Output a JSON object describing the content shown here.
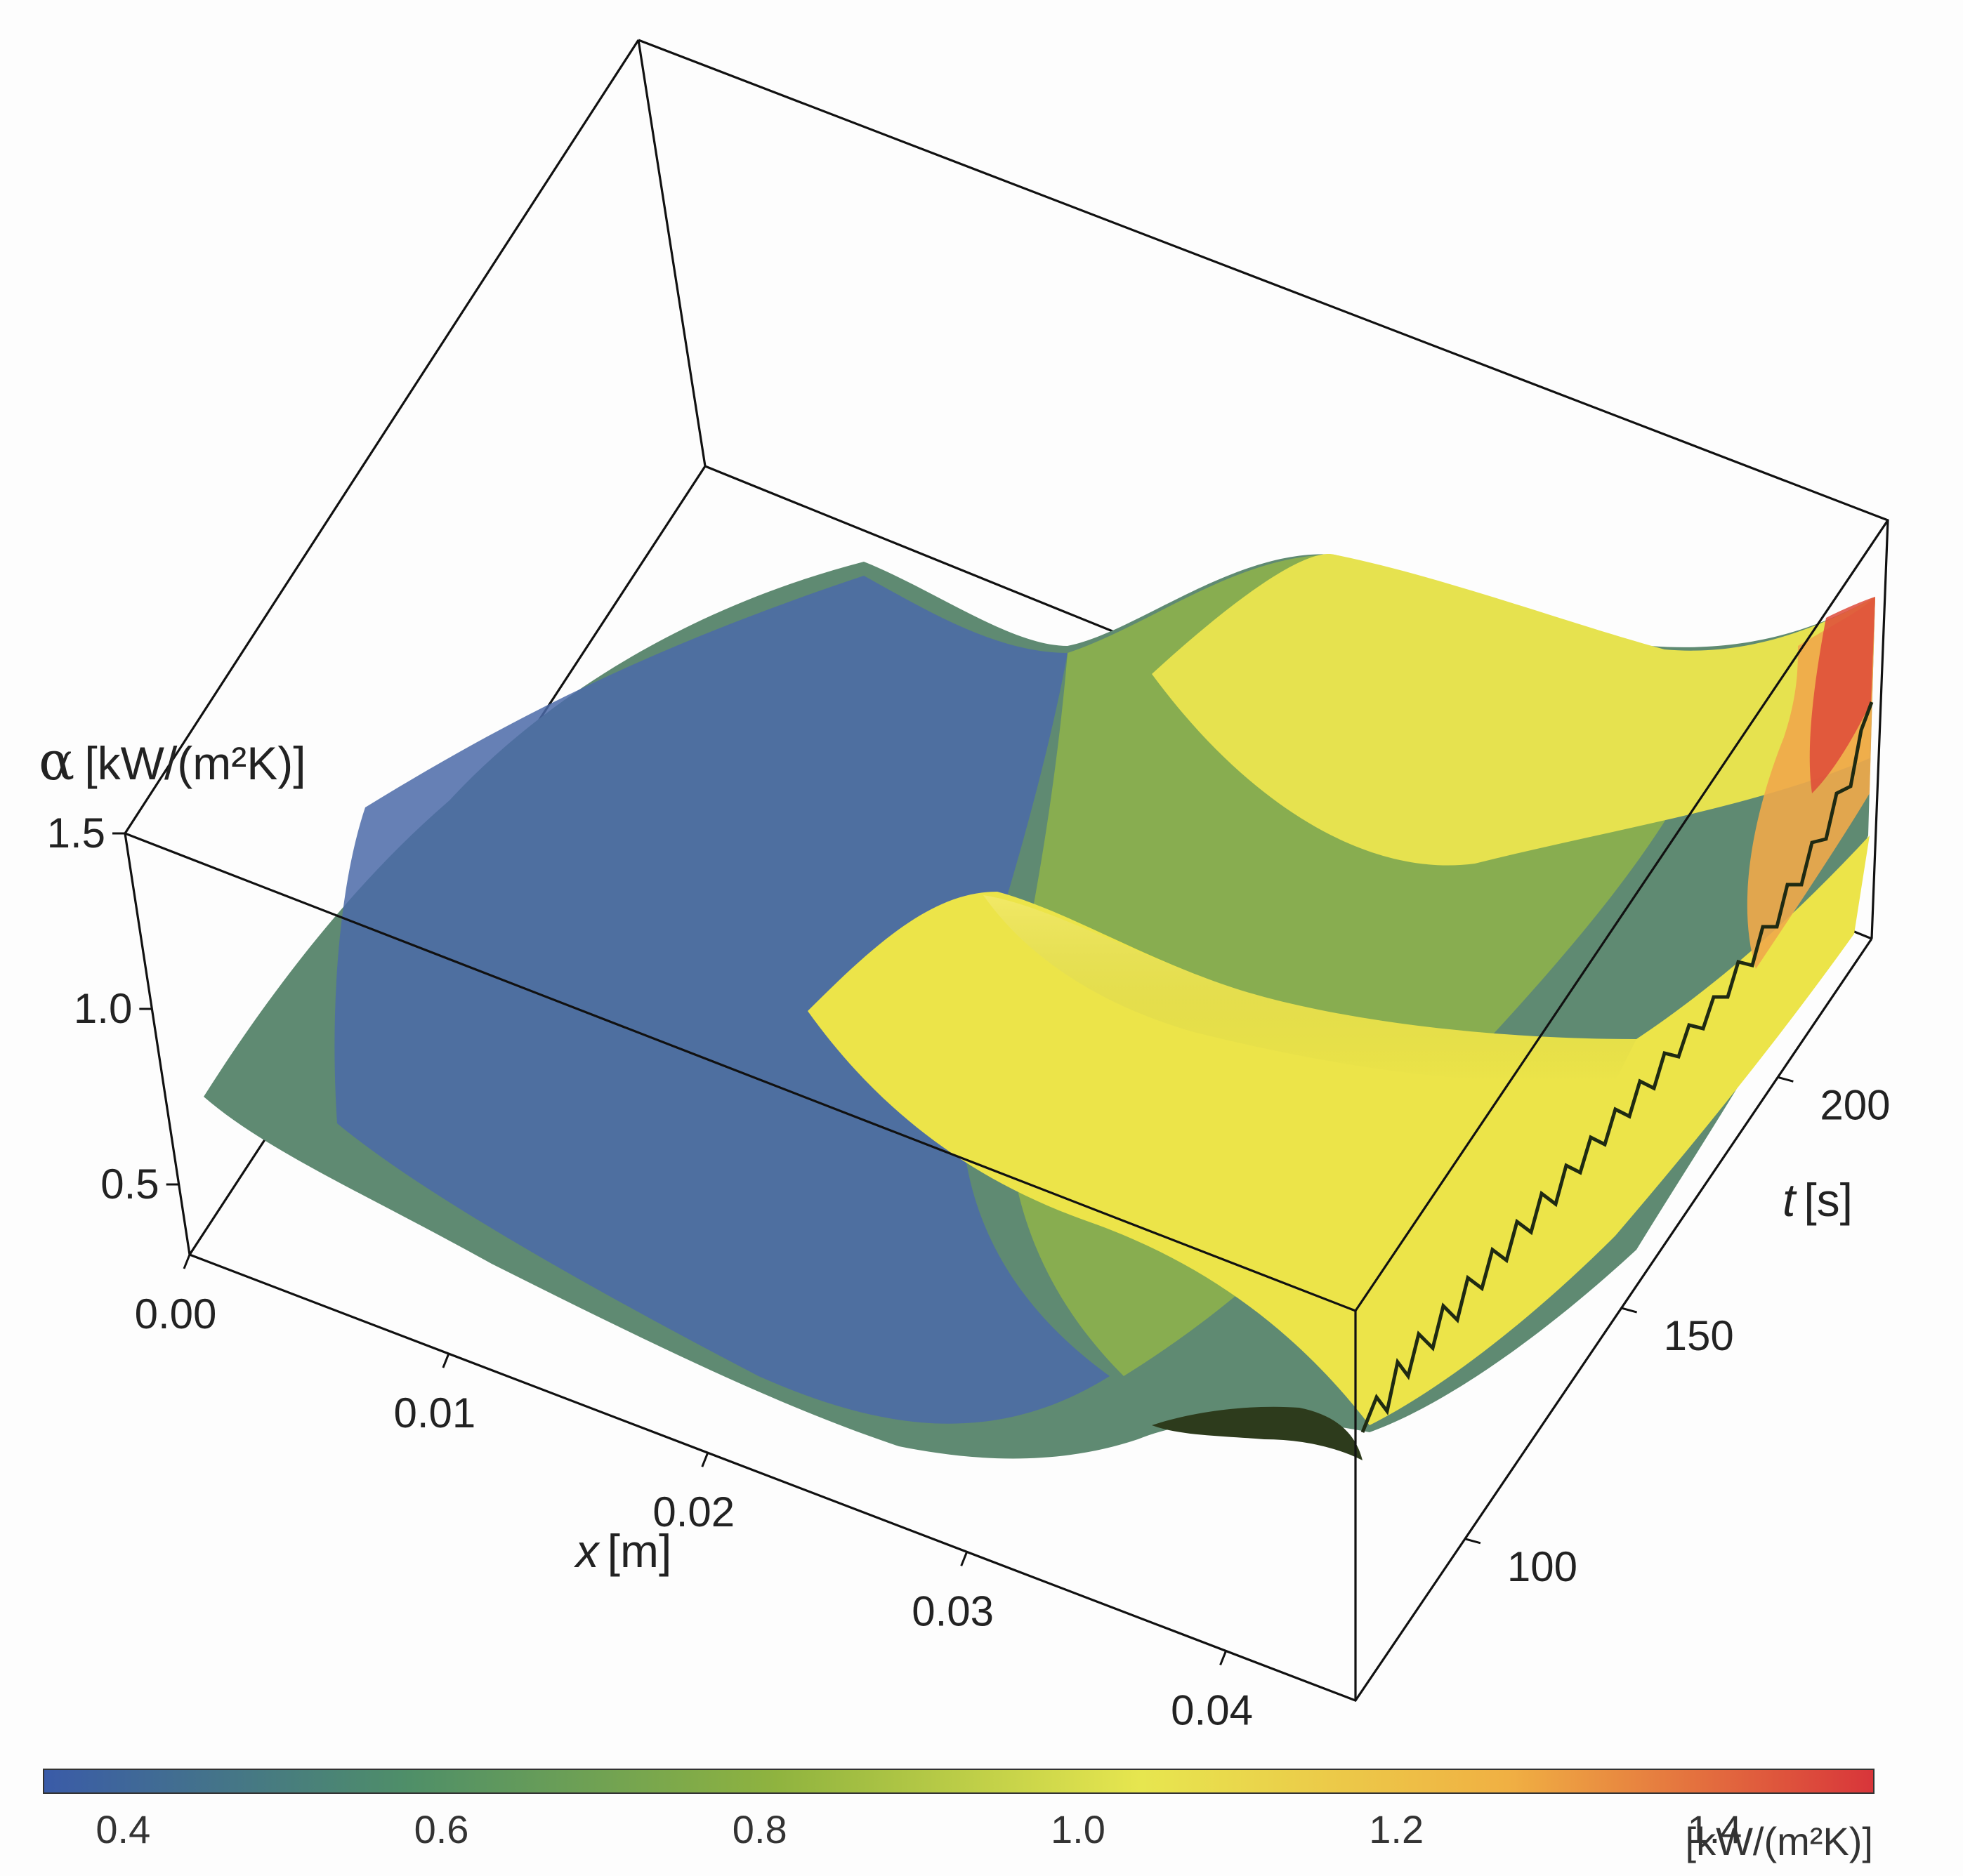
{
  "chart_data": {
    "type": "surface3d",
    "z_axis": {
      "label_symbol": "α",
      "label_unit": "[kW/(m²K)]",
      "ticks": [
        "0.5",
        "1.0",
        "1.5"
      ],
      "range": [
        0.3,
        1.5
      ]
    },
    "x_axis": {
      "label_var": "x",
      "label_unit": "[m]",
      "ticks": [
        "0.00",
        "0.01",
        "0.02",
        "0.03",
        "0.04"
      ],
      "range": [
        0.0,
        0.045
      ]
    },
    "t_axis": {
      "label_var": "t",
      "label_unit": "[s]",
      "ticks": [
        "100",
        "150",
        "200"
      ],
      "range": [
        65,
        230
      ]
    },
    "surface_profile_at_t_min": {
      "x": [
        0.0,
        0.005,
        0.01,
        0.015,
        0.02,
        0.025,
        0.03,
        0.035,
        0.04,
        0.045
      ],
      "alpha": [
        0.85,
        0.72,
        0.63,
        0.58,
        0.55,
        0.54,
        0.56,
        0.62,
        0.75,
        0.85
      ]
    },
    "surface_profile_at_t_max": {
      "x": [
        0.0,
        0.005,
        0.01,
        0.015,
        0.02,
        0.025,
        0.03,
        0.035,
        0.04,
        0.045
      ],
      "alpha": [
        0.8,
        0.74,
        0.68,
        0.66,
        0.7,
        0.95,
        1.12,
        1.08,
        1.15,
        1.4
      ]
    },
    "colorbar": {
      "min": 0.35,
      "max": 1.5,
      "ticks": [
        "0.4",
        "0.6",
        "0.8",
        "1.0",
        "1.2",
        "1.4"
      ],
      "unit": "[kW/(m²K)]",
      "colors": [
        "#3a5ba8",
        "#4f8f68",
        "#8fb33f",
        "#e7e64f",
        "#f0b043",
        "#d8353a"
      ]
    }
  }
}
